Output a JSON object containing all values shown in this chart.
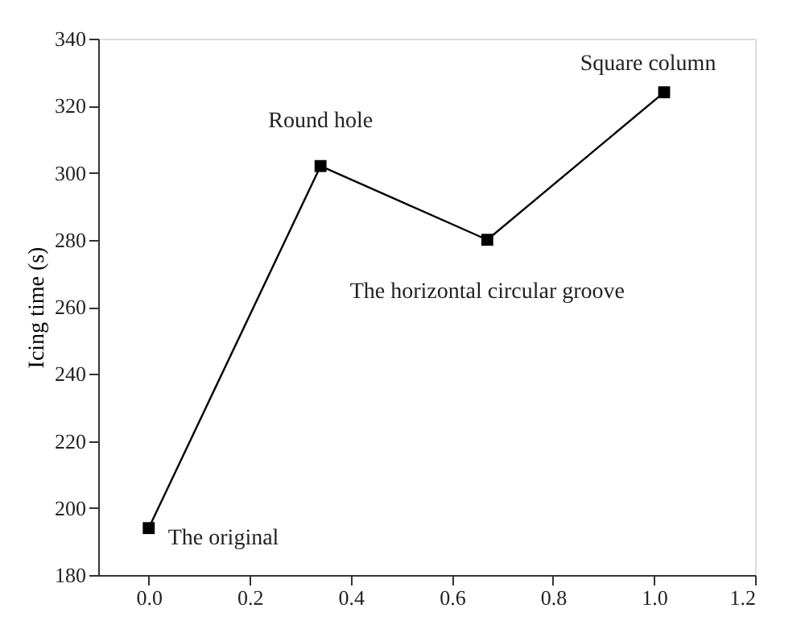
{
  "chart_data": {
    "type": "line",
    "ylabel": "Icing time (s)",
    "x": [
      0.0,
      0.34,
      0.67,
      1.02
    ],
    "series": [
      {
        "color": "#000000",
        "values": [
          194,
          302,
          280,
          324
        ]
      }
    ],
    "marker": "square",
    "line_style": "solid",
    "grid": false,
    "xlim": [
      -0.1,
      1.2
    ],
    "ylim": [
      180,
      340
    ],
    "xticks": [
      {
        "value": 0,
        "label": "0.0"
      },
      0.2,
      0.4,
      0.6,
      0.8,
      {
        "value": 1,
        "label": "1.0"
      },
      1.2
    ],
    "yticks": [
      180,
      200,
      220,
      240,
      260,
      280,
      300,
      320,
      340
    ],
    "annotations": [
      {
        "text": "The original",
        "x": 0.0,
        "y": 194
      },
      {
        "text": "Round hole",
        "x": 0.34,
        "y": 302
      },
      {
        "text": "The horizontal circular groove",
        "x": 0.67,
        "y": 280
      },
      {
        "text": "Square column",
        "x": 1.02,
        "y": 324
      }
    ]
  }
}
